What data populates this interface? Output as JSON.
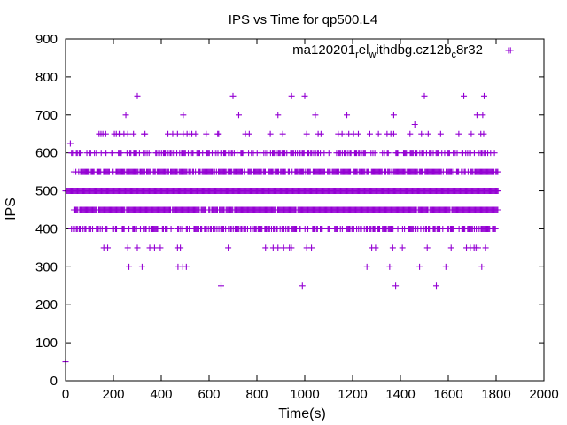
{
  "chart_data": {
    "type": "scatter",
    "title": "IPS vs Time for qp500.L4",
    "xlabel": "Time(s)",
    "ylabel": "IPS",
    "xlim": [
      0,
      2000
    ],
    "ylim": [
      0,
      900
    ],
    "xticks": [
      "0",
      "200",
      "400",
      "600",
      "800",
      "1000",
      "1200",
      "1400",
      "1600",
      "1800",
      "2000"
    ],
    "yticks": [
      "0",
      "100",
      "200",
      "300",
      "400",
      "500",
      "600",
      "700",
      "800",
      "900"
    ],
    "grid": false,
    "legend": {
      "position": "top-right",
      "label_parts": [
        "ma120201",
        "r",
        "el",
        "w",
        "ithdbg.cz12b",
        "c",
        "8r32"
      ],
      "marker": "plus",
      "color": "#9400d3"
    },
    "series": [
      {
        "marker": "plus",
        "color": "#9400d3",
        "outliers": [
          [
            0,
            50
          ],
          [
            20,
            625
          ],
          [
            1860,
            870
          ],
          [
            300,
            750
          ],
          [
            700,
            750
          ],
          [
            945,
            750
          ],
          [
            1000,
            750
          ],
          [
            1500,
            750
          ],
          [
            1665,
            750
          ],
          [
            1750,
            750
          ],
          [
            1460,
            675
          ],
          [
            650,
            250
          ],
          [
            990,
            250
          ],
          [
            1380,
            250
          ],
          [
            1550,
            250
          ],
          [
            265,
            300
          ],
          [
            320,
            300
          ],
          [
            470,
            300
          ],
          [
            490,
            300
          ],
          [
            505,
            300
          ],
          [
            1260,
            300
          ],
          [
            1355,
            300
          ],
          [
            1480,
            300
          ],
          [
            1590,
            300
          ],
          [
            1740,
            300
          ]
        ],
        "bands": [
          {
            "y": 500,
            "x_start": 0,
            "x_end": 1810,
            "density": 1.0
          },
          {
            "y": 450,
            "x_start": 35,
            "x_end": 1810,
            "density": 0.95
          },
          {
            "y": 550,
            "x_start": 35,
            "x_end": 1810,
            "density": 0.8
          },
          {
            "y": 400,
            "x_start": 25,
            "x_end": 1800,
            "density": 0.55
          },
          {
            "y": 600,
            "x_start": 25,
            "x_end": 1800,
            "density": 0.5
          },
          {
            "y": 650,
            "x_start": 100,
            "x_end": 1780,
            "density": 0.12
          },
          {
            "y": 350,
            "x_start": 140,
            "x_end": 1780,
            "density": 0.06
          },
          {
            "y": 700,
            "x_start": 220,
            "x_end": 1770,
            "density": 0.035
          }
        ]
      }
    ]
  }
}
